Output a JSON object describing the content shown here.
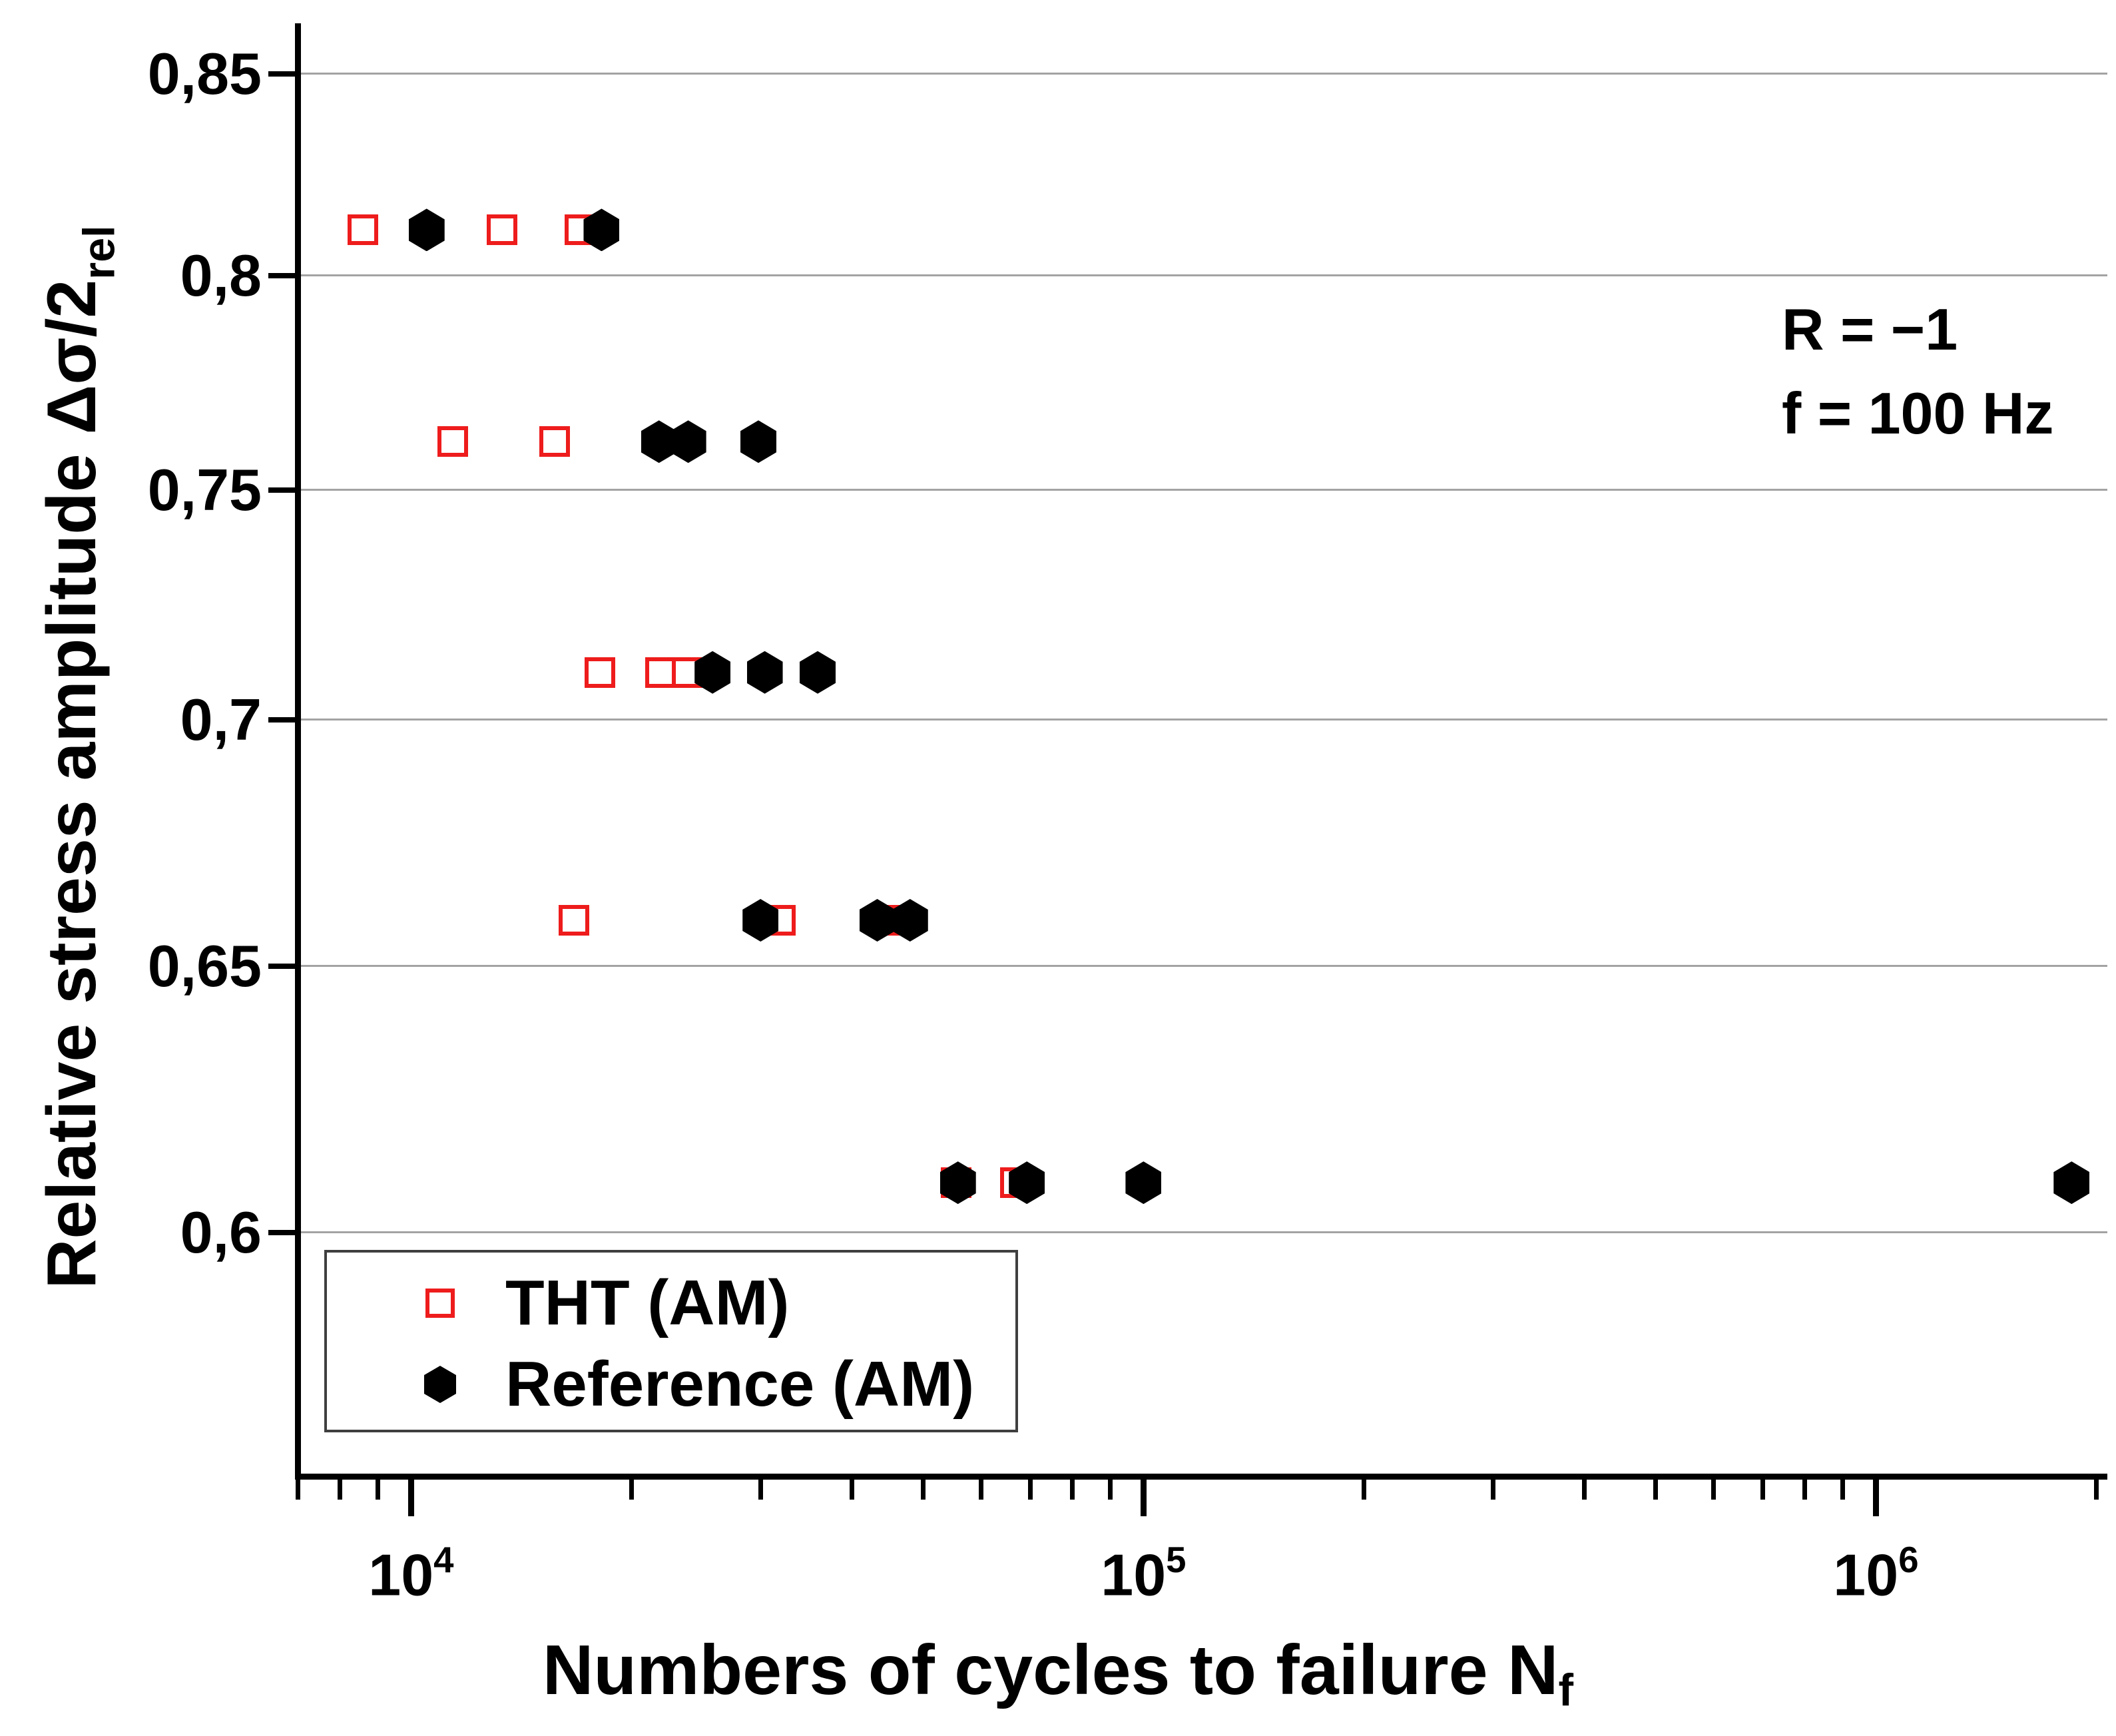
{
  "figure": {
    "background": "#ffffff",
    "accent_red": "#ee1c1c",
    "gridline_color": "#a3a3a3"
  },
  "chart_data": {
    "type": "scatter",
    "x_scale": "log",
    "y_scale": "log",
    "xlabel_main": "Numbers of cycles to failure N",
    "xlabel_sub": "f",
    "ylabel_main": "Relative stress amplitude Δσ/2",
    "ylabel_sub": "rel",
    "xlim": [
      7000,
      2070000
    ],
    "ylim": [
      0.558,
      0.863
    ],
    "grid": "horizontal-only",
    "legend_position": "inside-bottom-left",
    "annotation_lines": [
      "R = −1",
      "f = 100 Hz"
    ],
    "x_major_ticks": [
      {
        "base": "10",
        "exp": "4",
        "value": 10000
      },
      {
        "base": "10",
        "exp": "5",
        "value": 100000
      },
      {
        "base": "10",
        "exp": "6",
        "value": 1000000
      }
    ],
    "y_ticks": [
      {
        "label": "0,85",
        "value": 0.85
      },
      {
        "label": "0,8",
        "value": 0.8
      },
      {
        "label": "0,75",
        "value": 0.75
      },
      {
        "label": "0,7",
        "value": 0.7
      },
      {
        "label": "0,65",
        "value": 0.65
      },
      {
        "label": "0,6",
        "value": 0.6
      }
    ],
    "series": [
      {
        "name": "THT (AM)",
        "marker": "open-square",
        "color": "#ee1c1c",
        "points": [
          [
            8600,
            0.811
          ],
          [
            13300,
            0.811
          ],
          [
            17000,
            0.811
          ],
          [
            11400,
            0.761
          ],
          [
            15700,
            0.761
          ],
          [
            18100,
            0.71
          ],
          [
            21900,
            0.71
          ],
          [
            23800,
            0.71
          ],
          [
            16700,
            0.659
          ],
          [
            31900,
            0.659
          ],
          [
            45600,
            0.659
          ],
          [
            55500,
            0.609
          ],
          [
            66900,
            0.609
          ]
        ]
      },
      {
        "name": "Reference (AM)",
        "marker": "filled-hexagon",
        "color": "#000000",
        "points": [
          [
            10500,
            0.811
          ],
          [
            18200,
            0.811
          ],
          [
            21800,
            0.761
          ],
          [
            23900,
            0.761
          ],
          [
            29800,
            0.761
          ],
          [
            25800,
            0.71
          ],
          [
            30400,
            0.71
          ],
          [
            35900,
            0.71
          ],
          [
            30000,
            0.659
          ],
          [
            43300,
            0.659
          ],
          [
            48000,
            0.659
          ],
          [
            55800,
            0.609
          ],
          [
            69300,
            0.609
          ],
          [
            100000,
            0.609
          ],
          [
            1850000,
            0.609
          ]
        ]
      }
    ]
  }
}
